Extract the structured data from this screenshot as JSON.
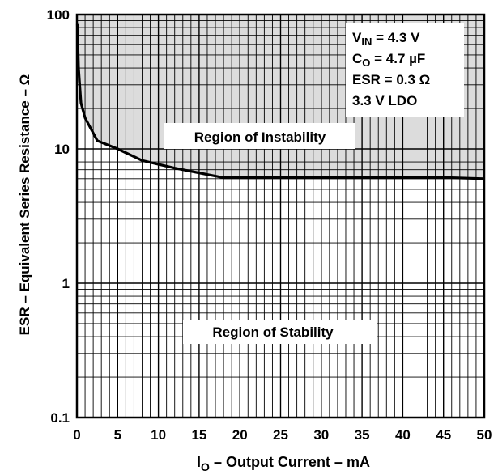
{
  "chart_data": {
    "type": "line",
    "xlabel": {
      "main": "I",
      "sub": "O",
      "rest": " – Output Current – mA"
    },
    "ylabel": "ESR – Equivalent Series Resistance – Ω",
    "xlim": [
      0,
      50
    ],
    "ylim": [
      0.1,
      100
    ],
    "yscale": "log",
    "grid": true,
    "x_ticks": [
      "0",
      "5",
      "10",
      "15",
      "20",
      "25",
      "30",
      "35",
      "40",
      "45",
      "50"
    ],
    "y_ticks": [
      {
        "value": 100,
        "label": "100"
      },
      {
        "value": 10,
        "label": "10"
      },
      {
        "value": 1,
        "label": "1"
      },
      {
        "value": 0.1,
        "label": "0.1"
      }
    ],
    "series": [
      {
        "x": [
          0.05,
          0.2,
          0.5,
          1.0,
          2.5,
          5,
          8,
          12,
          18,
          25,
          35,
          46,
          50
        ],
        "y": [
          85,
          40,
          22,
          17,
          11.5,
          10,
          8.2,
          7.2,
          6.1,
          6.1,
          6.1,
          6.1,
          6.0
        ]
      }
    ],
    "regions": {
      "instability": "Region of Instability",
      "stability": "Region of Stability"
    },
    "conditions": [
      {
        "main": "V",
        "sub": "IN",
        "rest": " = 4.3 V"
      },
      {
        "main": "C",
        "sub": "O",
        "rest": " = 4.7 µF"
      },
      {
        "main": "ESR = 0.3 Ω",
        "sub": "",
        "rest": ""
      },
      {
        "main": "3.3 V LDO",
        "sub": "",
        "rest": ""
      }
    ],
    "colors": {
      "instability_fill": "#dcdcdc",
      "curve": "#000000",
      "grid": "#000000"
    }
  }
}
